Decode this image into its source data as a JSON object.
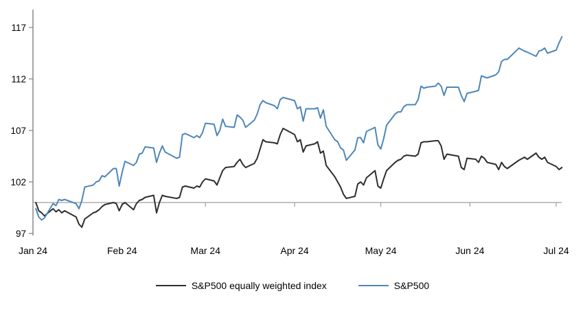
{
  "chart_data": {
    "type": "line",
    "title": "",
    "xlabel": "",
    "ylabel": "",
    "grid": "off",
    "legend_position": "bottom-center",
    "y_axis": {
      "min": 97,
      "max": 117,
      "ticks": [
        97,
        102,
        107,
        112,
        117
      ]
    },
    "x_axis": {
      "tick_dates": [
        "2024-01-01",
        "2024-02-01",
        "2024-03-01",
        "2024-04-01",
        "2024-05-01",
        "2024-06-01",
        "2024-07-01"
      ],
      "tick_labels": [
        "Jan 24",
        "Feb 24",
        "Mar 24",
        "Apr 24",
        "May 24",
        "Jun 24",
        "Jul 24"
      ]
    },
    "reference_line_value": 100,
    "series": [
      {
        "name": "S&P500 equally weighted index",
        "color": "#2d2d2d",
        "points": [
          [
            "2024-01-02",
            100.0
          ],
          [
            "2024-01-03",
            99.2
          ],
          [
            "2024-01-04",
            99.0
          ],
          [
            "2024-01-05",
            98.7
          ],
          [
            "2024-01-08",
            99.4
          ],
          [
            "2024-01-09",
            99.1
          ],
          [
            "2024-01-10",
            99.3
          ],
          [
            "2024-01-11",
            99.0
          ],
          [
            "2024-01-12",
            99.2
          ],
          [
            "2024-01-16",
            98.6
          ],
          [
            "2024-01-17",
            97.9
          ],
          [
            "2024-01-18",
            97.6
          ],
          [
            "2024-01-19",
            98.4
          ],
          [
            "2024-01-22",
            99.0
          ],
          [
            "2024-01-23",
            99.1
          ],
          [
            "2024-01-24",
            99.3
          ],
          [
            "2024-01-25",
            99.6
          ],
          [
            "2024-01-26",
            99.8
          ],
          [
            "2024-01-29",
            100.0
          ],
          [
            "2024-01-30",
            99.9
          ],
          [
            "2024-01-31",
            99.2
          ],
          [
            "2024-02-01",
            99.8
          ],
          [
            "2024-02-02",
            100.0
          ],
          [
            "2024-02-05",
            99.3
          ],
          [
            "2024-02-06",
            99.9
          ],
          [
            "2024-02-07",
            100.2
          ],
          [
            "2024-02-08",
            100.3
          ],
          [
            "2024-02-09",
            100.5
          ],
          [
            "2024-02-12",
            100.7
          ],
          [
            "2024-02-13",
            99.0
          ],
          [
            "2024-02-14",
            100.0
          ],
          [
            "2024-02-15",
            100.7
          ],
          [
            "2024-02-16",
            100.6
          ],
          [
            "2024-02-20",
            100.4
          ],
          [
            "2024-02-21",
            100.5
          ],
          [
            "2024-02-22",
            101.5
          ],
          [
            "2024-02-23",
            101.6
          ],
          [
            "2024-02-26",
            101.4
          ],
          [
            "2024-02-27",
            101.6
          ],
          [
            "2024-02-28",
            101.5
          ],
          [
            "2024-02-29",
            102.0
          ],
          [
            "2024-03-01",
            102.3
          ],
          [
            "2024-03-04",
            102.1
          ],
          [
            "2024-03-05",
            101.7
          ],
          [
            "2024-03-06",
            102.4
          ],
          [
            "2024-03-07",
            103.1
          ],
          [
            "2024-03-08",
            103.4
          ],
          [
            "2024-03-11",
            103.5
          ],
          [
            "2024-03-12",
            103.9
          ],
          [
            "2024-03-13",
            104.2
          ],
          [
            "2024-03-14",
            103.7
          ],
          [
            "2024-03-15",
            103.4
          ],
          [
            "2024-03-18",
            103.8
          ],
          [
            "2024-03-19",
            104.3
          ],
          [
            "2024-03-20",
            105.2
          ],
          [
            "2024-03-21",
            106.1
          ],
          [
            "2024-03-22",
            105.9
          ],
          [
            "2024-03-25",
            105.8
          ],
          [
            "2024-03-26",
            105.7
          ],
          [
            "2024-03-27",
            106.6
          ],
          [
            "2024-03-28",
            107.2
          ],
          [
            "2024-04-01",
            106.6
          ],
          [
            "2024-04-02",
            105.9
          ],
          [
            "2024-04-03",
            106.1
          ],
          [
            "2024-04-04",
            104.9
          ],
          [
            "2024-04-05",
            105.5
          ],
          [
            "2024-04-08",
            105.7
          ],
          [
            "2024-04-09",
            105.9
          ],
          [
            "2024-04-10",
            104.8
          ],
          [
            "2024-04-11",
            105.0
          ],
          [
            "2024-04-12",
            103.6
          ],
          [
            "2024-04-15",
            102.5
          ],
          [
            "2024-04-16",
            102.0
          ],
          [
            "2024-04-17",
            101.5
          ],
          [
            "2024-04-18",
            100.8
          ],
          [
            "2024-04-19",
            100.4
          ],
          [
            "2024-04-22",
            100.6
          ],
          [
            "2024-04-23",
            101.8
          ],
          [
            "2024-04-24",
            102.0
          ],
          [
            "2024-04-25",
            101.7
          ],
          [
            "2024-04-26",
            102.4
          ],
          [
            "2024-04-29",
            103.1
          ],
          [
            "2024-04-30",
            101.6
          ],
          [
            "2024-05-01",
            101.4
          ],
          [
            "2024-05-02",
            102.3
          ],
          [
            "2024-05-03",
            103.1
          ],
          [
            "2024-05-06",
            103.9
          ],
          [
            "2024-05-07",
            104.1
          ],
          [
            "2024-05-08",
            104.2
          ],
          [
            "2024-05-09",
            104.5
          ],
          [
            "2024-05-10",
            104.6
          ],
          [
            "2024-05-13",
            104.5
          ],
          [
            "2024-05-14",
            104.7
          ],
          [
            "2024-05-15",
            105.8
          ],
          [
            "2024-05-16",
            105.9
          ],
          [
            "2024-05-17",
            105.9
          ],
          [
            "2024-05-20",
            106.0
          ],
          [
            "2024-05-21",
            106.0
          ],
          [
            "2024-05-22",
            105.5
          ],
          [
            "2024-05-23",
            104.2
          ],
          [
            "2024-05-24",
            104.7
          ],
          [
            "2024-05-28",
            104.5
          ],
          [
            "2024-05-29",
            103.4
          ],
          [
            "2024-05-30",
            103.2
          ],
          [
            "2024-05-31",
            104.3
          ],
          [
            "2024-06-03",
            104.2
          ],
          [
            "2024-06-04",
            103.9
          ],
          [
            "2024-06-05",
            104.5
          ],
          [
            "2024-06-06",
            104.3
          ],
          [
            "2024-06-07",
            103.9
          ],
          [
            "2024-06-10",
            103.7
          ],
          [
            "2024-06-11",
            103.2
          ],
          [
            "2024-06-12",
            103.9
          ],
          [
            "2024-06-13",
            103.5
          ],
          [
            "2024-06-14",
            103.3
          ],
          [
            "2024-06-17",
            103.9
          ],
          [
            "2024-06-18",
            104.1
          ],
          [
            "2024-06-20",
            104.4
          ],
          [
            "2024-06-21",
            104.2
          ],
          [
            "2024-06-24",
            104.8
          ],
          [
            "2024-06-25",
            104.4
          ],
          [
            "2024-06-26",
            104.2
          ],
          [
            "2024-06-27",
            104.4
          ],
          [
            "2024-06-28",
            103.9
          ],
          [
            "2024-07-01",
            103.5
          ],
          [
            "2024-07-02",
            103.2
          ],
          [
            "2024-07-03",
            103.4
          ]
        ]
      },
      {
        "name": "S&P500",
        "color": "#4e86b8",
        "points": [
          [
            "2024-01-02",
            99.4
          ],
          [
            "2024-01-03",
            98.6
          ],
          [
            "2024-01-04",
            98.3
          ],
          [
            "2024-01-05",
            98.5
          ],
          [
            "2024-01-08",
            99.9
          ],
          [
            "2024-01-09",
            99.7
          ],
          [
            "2024-01-10",
            100.3
          ],
          [
            "2024-01-11",
            100.2
          ],
          [
            "2024-01-12",
            100.3
          ],
          [
            "2024-01-16",
            99.9
          ],
          [
            "2024-01-17",
            99.4
          ],
          [
            "2024-01-18",
            100.2
          ],
          [
            "2024-01-19",
            101.5
          ],
          [
            "2024-01-22",
            101.7
          ],
          [
            "2024-01-23",
            102.0
          ],
          [
            "2024-01-24",
            102.1
          ],
          [
            "2024-01-25",
            102.6
          ],
          [
            "2024-01-26",
            102.5
          ],
          [
            "2024-01-29",
            103.3
          ],
          [
            "2024-01-30",
            103.3
          ],
          [
            "2024-01-31",
            101.6
          ],
          [
            "2024-02-01",
            102.9
          ],
          [
            "2024-02-02",
            104.0
          ],
          [
            "2024-02-05",
            103.6
          ],
          [
            "2024-02-06",
            103.9
          ],
          [
            "2024-02-07",
            104.7
          ],
          [
            "2024-02-08",
            104.8
          ],
          [
            "2024-02-09",
            105.4
          ],
          [
            "2024-02-12",
            105.3
          ],
          [
            "2024-02-13",
            103.9
          ],
          [
            "2024-02-14",
            104.8
          ],
          [
            "2024-02-15",
            105.5
          ],
          [
            "2024-02-16",
            104.9
          ],
          [
            "2024-02-20",
            104.3
          ],
          [
            "2024-02-21",
            104.4
          ],
          [
            "2024-02-22",
            106.6
          ],
          [
            "2024-02-23",
            106.7
          ],
          [
            "2024-02-26",
            106.3
          ],
          [
            "2024-02-27",
            106.5
          ],
          [
            "2024-02-28",
            106.3
          ],
          [
            "2024-02-29",
            106.8
          ],
          [
            "2024-03-01",
            107.7
          ],
          [
            "2024-03-04",
            107.6
          ],
          [
            "2024-03-05",
            106.5
          ],
          [
            "2024-03-06",
            107.0
          ],
          [
            "2024-03-07",
            108.1
          ],
          [
            "2024-03-08",
            107.4
          ],
          [
            "2024-03-11",
            107.3
          ],
          [
            "2024-03-12",
            108.5
          ],
          [
            "2024-03-13",
            108.3
          ],
          [
            "2024-03-14",
            108.0
          ],
          [
            "2024-03-15",
            107.3
          ],
          [
            "2024-03-18",
            108.0
          ],
          [
            "2024-03-19",
            108.6
          ],
          [
            "2024-03-20",
            109.5
          ],
          [
            "2024-03-21",
            109.9
          ],
          [
            "2024-03-22",
            109.7
          ],
          [
            "2024-03-25",
            109.4
          ],
          [
            "2024-03-26",
            109.1
          ],
          [
            "2024-03-27",
            110.0
          ],
          [
            "2024-03-28",
            110.2
          ],
          [
            "2024-04-01",
            109.9
          ],
          [
            "2024-04-02",
            109.1
          ],
          [
            "2024-04-03",
            109.3
          ],
          [
            "2024-04-04",
            107.9
          ],
          [
            "2024-04-05",
            109.1
          ],
          [
            "2024-04-08",
            109.1
          ],
          [
            "2024-04-09",
            109.2
          ],
          [
            "2024-04-10",
            108.2
          ],
          [
            "2024-04-11",
            109.0
          ],
          [
            "2024-04-12",
            107.4
          ],
          [
            "2024-04-15",
            106.1
          ],
          [
            "2024-04-16",
            105.9
          ],
          [
            "2024-04-17",
            105.3
          ],
          [
            "2024-04-18",
            105.1
          ],
          [
            "2024-04-19",
            104.1
          ],
          [
            "2024-04-22",
            105.1
          ],
          [
            "2024-04-23",
            106.3
          ],
          [
            "2024-04-24",
            106.3
          ],
          [
            "2024-04-25",
            105.8
          ],
          [
            "2024-04-26",
            106.9
          ],
          [
            "2024-04-29",
            107.3
          ],
          [
            "2024-04-30",
            105.6
          ],
          [
            "2024-05-01",
            105.2
          ],
          [
            "2024-05-02",
            106.2
          ],
          [
            "2024-05-03",
            107.5
          ],
          [
            "2024-05-06",
            108.6
          ],
          [
            "2024-05-07",
            108.8
          ],
          [
            "2024-05-08",
            108.8
          ],
          [
            "2024-05-09",
            109.3
          ],
          [
            "2024-05-10",
            109.5
          ],
          [
            "2024-05-13",
            109.5
          ],
          [
            "2024-05-14",
            110.0
          ],
          [
            "2024-05-15",
            111.3
          ],
          [
            "2024-05-16",
            111.1
          ],
          [
            "2024-05-17",
            111.2
          ],
          [
            "2024-05-20",
            111.3
          ],
          [
            "2024-05-21",
            111.6
          ],
          [
            "2024-05-22",
            111.3
          ],
          [
            "2024-05-23",
            110.4
          ],
          [
            "2024-05-24",
            111.2
          ],
          [
            "2024-05-28",
            111.2
          ],
          [
            "2024-05-29",
            110.4
          ],
          [
            "2024-05-30",
            109.8
          ],
          [
            "2024-05-31",
            110.6
          ],
          [
            "2024-06-03",
            110.8
          ],
          [
            "2024-06-04",
            110.9
          ],
          [
            "2024-06-05",
            112.3
          ],
          [
            "2024-06-06",
            112.2
          ],
          [
            "2024-06-07",
            112.1
          ],
          [
            "2024-06-10",
            112.4
          ],
          [
            "2024-06-11",
            112.7
          ],
          [
            "2024-06-12",
            113.7
          ],
          [
            "2024-06-13",
            113.9
          ],
          [
            "2024-06-14",
            113.9
          ],
          [
            "2024-06-17",
            114.7
          ],
          [
            "2024-06-18",
            115.0
          ],
          [
            "2024-06-20",
            114.7
          ],
          [
            "2024-06-21",
            114.6
          ],
          [
            "2024-06-24",
            114.2
          ],
          [
            "2024-06-25",
            114.7
          ],
          [
            "2024-06-26",
            114.8
          ],
          [
            "2024-06-27",
            115.0
          ],
          [
            "2024-06-28",
            114.5
          ],
          [
            "2024-07-01",
            114.8
          ],
          [
            "2024-07-02",
            115.5
          ],
          [
            "2024-07-03",
            116.1
          ]
        ]
      }
    ]
  },
  "colors": {
    "axis": "#808080",
    "reference_line": "#9d9d9d",
    "tick_text": "#000000"
  }
}
